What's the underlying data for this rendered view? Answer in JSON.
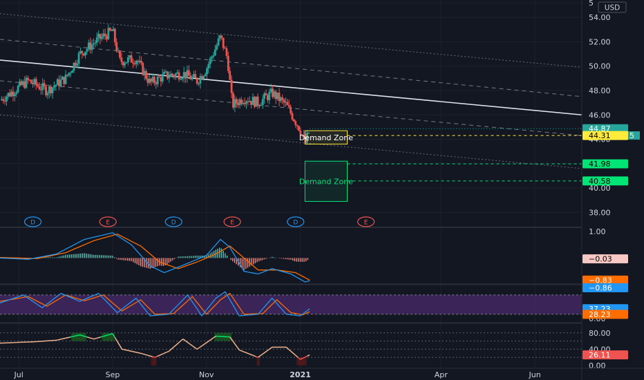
{
  "currency_label": "USD",
  "colors": {
    "background": "#131722",
    "up": "#26a69a",
    "down": "#ef5350",
    "grid": "#1e222d",
    "axis_text": "#d1d4dc",
    "demand_upper": "#ffeb3b",
    "demand_lower": "#00e676",
    "macd": "#2196f3",
    "signal": "#ff6d00",
    "stoch_fill": "#4a2a6b",
    "rsi_line": "#f5b58c"
  },
  "chart_data": {
    "type": "candlestick",
    "x_ticks": [
      "Jul",
      "Sep",
      "Nov",
      "2021",
      "Apr",
      "Jun"
    ],
    "x_tick_months": [
      0,
      2,
      4,
      6,
      9,
      11
    ],
    "month_domain": [
      -0.4,
      12.0
    ],
    "last_bar_month": 6.2,
    "price_axis": {
      "range": [
        37.0,
        55.2
      ],
      "ticks": [
        "5",
        "54.00",
        "52.00",
        "50.00",
        "48.00",
        "46.00",
        "44.00",
        "42.00",
        "40.00",
        "38.00"
      ],
      "tick_values": [
        55.2,
        54.0,
        52.0,
        50.0,
        48.0,
        46.0,
        44.0,
        42.0,
        40.0,
        38.0
      ]
    },
    "price_path": [
      [
        -0.4,
        47.2
      ],
      [
        0.2,
        48.8
      ],
      [
        0.6,
        48.0
      ],
      [
        1.0,
        49.0
      ],
      [
        1.3,
        51.0
      ],
      [
        1.7,
        52.2
      ],
      [
        2.0,
        52.9
      ],
      [
        2.15,
        50.4
      ],
      [
        2.5,
        50.6
      ],
      [
        2.8,
        48.6
      ],
      [
        3.1,
        49.2
      ],
      [
        3.5,
        49.4
      ],
      [
        3.8,
        48.8
      ],
      [
        4.0,
        49.8
      ],
      [
        4.3,
        52.4
      ],
      [
        4.45,
        50.6
      ],
      [
        4.55,
        46.8
      ],
      [
        4.8,
        47.4
      ],
      [
        5.1,
        47.0
      ],
      [
        5.4,
        47.8
      ],
      [
        5.7,
        46.8
      ],
      [
        6.0,
        44.8
      ],
      [
        6.1,
        43.6
      ],
      [
        6.2,
        44.8
      ]
    ],
    "price_labels": [
      {
        "value": 44.87,
        "text": "44.87",
        "bg": "#26a69a",
        "fg": "#ffffff"
      },
      {
        "value": 44.31,
        "text": "44.31",
        "bg": "#ffeb3b",
        "fg": "#000000"
      },
      {
        "value": 41.98,
        "text": "41.98",
        "bg": "#00e676",
        "fg": "#000000"
      },
      {
        "value": 40.58,
        "text": "40.58",
        "bg": "#00e676",
        "fg": "#000000"
      }
    ],
    "hidden_label_fragment": "5",
    "trend_lines": [
      {
        "style": "solid",
        "from": [
          -0.4,
          50.5
        ],
        "to": [
          12.0,
          46.0
        ]
      },
      {
        "style": "dashed",
        "from": [
          -0.4,
          52.2
        ],
        "to": [
          12.0,
          47.5
        ]
      },
      {
        "style": "dashed",
        "from": [
          -0.4,
          48.8
        ],
        "to": [
          12.0,
          44.3
        ]
      },
      {
        "style": "dotted",
        "from": [
          -0.4,
          54.3
        ],
        "to": [
          12.0,
          49.9
        ]
      },
      {
        "style": "dotted",
        "from": [
          -0.4,
          46.0
        ],
        "to": [
          12.0,
          41.6
        ]
      }
    ],
    "demand_zones": [
      {
        "label": "Demand Zone",
        "month_start": 6.1,
        "month_end": 7.0,
        "top": 44.7,
        "bottom": 43.6,
        "color": "#ffeb3b",
        "line_value": 44.31
      },
      {
        "label": "Demand Zone",
        "month_start": 6.1,
        "month_end": 7.0,
        "top": 42.2,
        "bottom": 38.9,
        "color": "#00e676",
        "line_value_top": 41.98,
        "line_value_bottom": 40.58
      }
    ],
    "events": [
      {
        "letter": "D",
        "month": 0.3,
        "color": "#2196f3"
      },
      {
        "letter": "E",
        "month": 1.9,
        "color": "#ef5350"
      },
      {
        "letter": "D",
        "month": 3.3,
        "color": "#2196f3"
      },
      {
        "letter": "E",
        "month": 4.55,
        "color": "#ef5350"
      },
      {
        "letter": "D",
        "month": 5.9,
        "color": "#2196f3"
      },
      {
        "letter": "E",
        "month": 7.4,
        "color": "#ef5350"
      }
    ],
    "macd": {
      "range": [
        -0.95,
        1.05
      ],
      "ticks": [
        "1.00"
      ],
      "tick_values": [
        1.0
      ],
      "macd_path": [
        [
          -0.4,
          0.0
        ],
        [
          0.2,
          -0.05
        ],
        [
          0.8,
          0.15
        ],
        [
          1.4,
          0.7
        ],
        [
          2.0,
          0.95
        ],
        [
          2.4,
          0.5
        ],
        [
          2.8,
          -0.3
        ],
        [
          3.1,
          -0.55
        ],
        [
          3.6,
          -0.2
        ],
        [
          4.0,
          0.1
        ],
        [
          4.3,
          0.7
        ],
        [
          4.5,
          0.4
        ],
        [
          4.8,
          -0.5
        ],
        [
          5.1,
          -0.6
        ],
        [
          5.4,
          -0.4
        ],
        [
          5.8,
          -0.6
        ],
        [
          6.1,
          -0.9
        ],
        [
          6.2,
          -0.86
        ]
      ],
      "signal_path": [
        [
          -0.4,
          0.02
        ],
        [
          0.4,
          -0.02
        ],
        [
          1.0,
          0.2
        ],
        [
          1.6,
          0.65
        ],
        [
          2.1,
          0.9
        ],
        [
          2.6,
          0.45
        ],
        [
          3.0,
          -0.15
        ],
        [
          3.4,
          -0.4
        ],
        [
          3.8,
          -0.15
        ],
        [
          4.2,
          0.15
        ],
        [
          4.5,
          0.45
        ],
        [
          4.8,
          0.0
        ],
        [
          5.1,
          -0.45
        ],
        [
          5.5,
          -0.45
        ],
        [
          5.9,
          -0.55
        ],
        [
          6.2,
          -0.83
        ]
      ],
      "labels": [
        {
          "value": -0.03,
          "text": "−0.03",
          "bg": "#f8c9c4",
          "fg": "#000000"
        },
        {
          "value": -0.83,
          "text": "−0.83",
          "bg": "#ff6d00",
          "fg": "#ffffff"
        },
        {
          "value": -0.86,
          "text": "−0.86",
          "bg": "#2196f3",
          "fg": "#ffffff"
        }
      ]
    },
    "stochastic": {
      "range": [
        -2,
        110
      ],
      "ticks": [
        "0.00"
      ],
      "tick_values": [
        0.0
      ],
      "band": [
        20,
        80
      ],
      "k_path": [
        [
          -0.4,
          55
        ],
        [
          0.1,
          80
        ],
        [
          0.5,
          40
        ],
        [
          0.9,
          85
        ],
        [
          1.3,
          60
        ],
        [
          1.7,
          85
        ],
        [
          2.1,
          25
        ],
        [
          2.5,
          70
        ],
        [
          2.8,
          15
        ],
        [
          3.2,
          20
        ],
        [
          3.6,
          80
        ],
        [
          3.9,
          15
        ],
        [
          4.2,
          70
        ],
        [
          4.4,
          90
        ],
        [
          4.7,
          15
        ],
        [
          5.1,
          20
        ],
        [
          5.4,
          70
        ],
        [
          5.7,
          20
        ],
        [
          6.0,
          15
        ],
        [
          6.2,
          37
        ]
      ],
      "d_path": [
        [
          -0.4,
          60
        ],
        [
          0.2,
          75
        ],
        [
          0.6,
          45
        ],
        [
          1.0,
          80
        ],
        [
          1.4,
          62
        ],
        [
          1.8,
          80
        ],
        [
          2.2,
          30
        ],
        [
          2.6,
          65
        ],
        [
          2.9,
          20
        ],
        [
          3.3,
          22
        ],
        [
          3.7,
          75
        ],
        [
          4.0,
          20
        ],
        [
          4.3,
          65
        ],
        [
          4.5,
          85
        ],
        [
          4.8,
          20
        ],
        [
          5.2,
          22
        ],
        [
          5.5,
          65
        ],
        [
          5.8,
          25
        ],
        [
          6.05,
          18
        ],
        [
          6.2,
          28
        ]
      ],
      "labels": [
        {
          "value": 37.23,
          "text": "37.23",
          "bg": "#2196f3",
          "fg": "#ffffff"
        },
        {
          "value": 28.23,
          "text": "28.23",
          "bg": "#ff6d00",
          "fg": "#ffffff"
        }
      ]
    },
    "rsi": {
      "range": [
        -5,
        100
      ],
      "ticks": [
        "80.00",
        "40.00",
        "0.00"
      ],
      "tick_values": [
        80,
        40,
        0
      ],
      "levels": [
        80,
        60,
        40,
        20
      ],
      "path": [
        [
          -0.4,
          55
        ],
        [
          0.3,
          58
        ],
        [
          0.8,
          62
        ],
        [
          1.3,
          75
        ],
        [
          1.6,
          65
        ],
        [
          2.0,
          78
        ],
        [
          2.2,
          40
        ],
        [
          2.6,
          30
        ],
        [
          2.9,
          20
        ],
        [
          3.2,
          35
        ],
        [
          3.5,
          65
        ],
        [
          3.8,
          40
        ],
        [
          4.2,
          72
        ],
        [
          4.5,
          70
        ],
        [
          4.7,
          38
        ],
        [
          5.1,
          20
        ],
        [
          5.4,
          45
        ],
        [
          5.7,
          45
        ],
        [
          6.0,
          15
        ],
        [
          6.2,
          26
        ]
      ],
      "labels": [
        {
          "value": 26.11,
          "text": "26.11",
          "bg": "#ef5350",
          "fg": "#ffffff"
        }
      ]
    }
  }
}
